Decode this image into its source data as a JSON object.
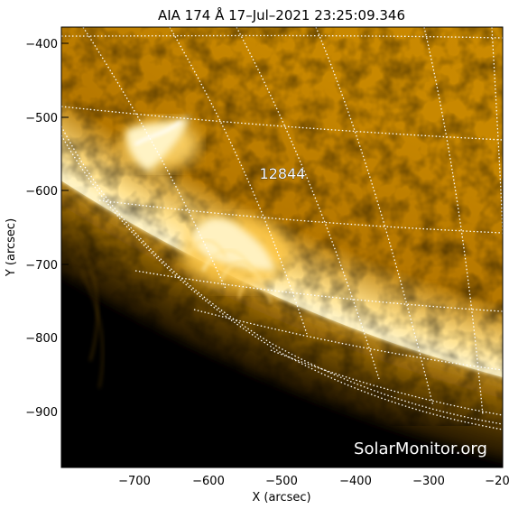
{
  "title": "AIA 174 Å 17–Jul–2021 23:25:09.346",
  "watermark": "SolarMonitor.org",
  "active_region": "12844",
  "x_axis": {
    "label": "X (arcsec)",
    "ticks": [
      "−700",
      "−600",
      "−500",
      "−400",
      "−300",
      "−20"
    ]
  },
  "y_axis": {
    "label": "Y (arcsec)",
    "ticks": [
      "−400",
      "−500",
      "−600",
      "−700",
      "−800",
      "−900"
    ]
  },
  "colors": {
    "disk": "#c98a00",
    "highlight": "#fff6d8",
    "space": "#000000",
    "grid": "#ffffff"
  }
}
